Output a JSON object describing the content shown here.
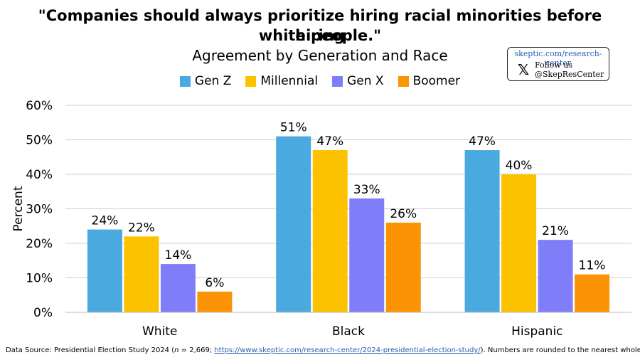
{
  "title_line1": "\"Companies should always prioritize hiring racial minorities before hiring",
  "title_line2": "white people.\"",
  "subtitle": "Agreement by Generation and Race",
  "brand": {
    "url": "skeptic.com/research-center",
    "x_icon": "x-logo-icon",
    "follow": "Follow us",
    "handle": "@SkepResCenter"
  },
  "footer": {
    "prefix": "Data Source: Presidential Election Study 2024 (",
    "n_italic": "n",
    "n_value": " = 2,669; ",
    "link": "https://www.skeptic.com/research-center/2024-presidential-election-study/",
    "suffix": "). Numbers are rounded to the nearest whole."
  },
  "chart_data": {
    "type": "bar",
    "title": "\"Companies should always prioritize hiring racial minorities before hiring white people.\"",
    "subtitle": "Agreement by Generation and Race",
    "xlabel": "",
    "ylabel": "Percent",
    "ylim": [
      0,
      60
    ],
    "yticks": [
      0,
      10,
      20,
      30,
      40,
      50,
      60
    ],
    "ytick_labels": [
      "0%",
      "10%",
      "20%",
      "30%",
      "40%",
      "50%",
      "60%"
    ],
    "grid": true,
    "legend_position": "top",
    "categories": [
      "White",
      "Black",
      "Hispanic"
    ],
    "series": [
      {
        "name": "Gen Z",
        "color": "#4aa9de",
        "values": [
          24,
          51,
          47
        ],
        "labels": [
          "24%",
          "51%",
          "47%"
        ]
      },
      {
        "name": "Millennial",
        "color": "#fcc200",
        "values": [
          22,
          47,
          40
        ],
        "labels": [
          "22%",
          "47%",
          "40%"
        ]
      },
      {
        "name": "Gen X",
        "color": "#7f7ef8",
        "values": [
          14,
          33,
          21
        ],
        "labels": [
          "14%",
          "33%",
          "21%"
        ]
      },
      {
        "name": "Boomer",
        "color": "#fb9404",
        "values": [
          6,
          26,
          11
        ],
        "labels": [
          "6%",
          "26%",
          "11%"
        ]
      }
    ]
  }
}
